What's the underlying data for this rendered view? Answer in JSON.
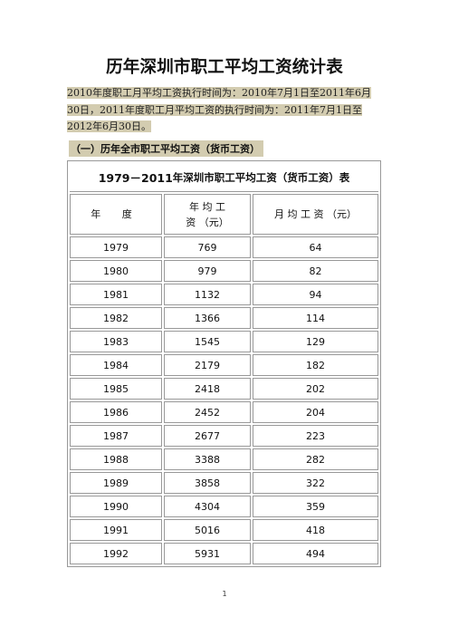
{
  "title": "历年深圳市职工平均工资统计表",
  "note": "2010年度职工月平均工资执行时间为：2010年7月1日至2011年6月30日，2011年度职工月平均工资的执行时间为：2011年7月1日至2012年6月30日。",
  "section_heading": "（一）历年全市职工平均工资（货币工资）",
  "table": {
    "caption_year": "1979－2011",
    "caption_text": "年深圳市职工平均工资（货币工资）表",
    "headers": {
      "year": "年 度",
      "annual_line1": "年 均 工",
      "annual_line2": "资 （元）",
      "monthly": "月 均 工 资 （元）"
    },
    "rows": [
      {
        "year": "1979",
        "annual": "769",
        "monthly": "64"
      },
      {
        "year": "1980",
        "annual": "979",
        "monthly": "82"
      },
      {
        "year": "1981",
        "annual": "1132",
        "monthly": "94"
      },
      {
        "year": "1982",
        "annual": "1366",
        "monthly": "114"
      },
      {
        "year": "1983",
        "annual": "1545",
        "monthly": "129"
      },
      {
        "year": "1984",
        "annual": "2179",
        "monthly": "182"
      },
      {
        "year": "1985",
        "annual": "2418",
        "monthly": "202"
      },
      {
        "year": "1986",
        "annual": "2452",
        "monthly": "204"
      },
      {
        "year": "1987",
        "annual": "2677",
        "monthly": "223"
      },
      {
        "year": "1988",
        "annual": "3388",
        "monthly": "282"
      },
      {
        "year": "1989",
        "annual": "3858",
        "monthly": "322"
      },
      {
        "year": "1990",
        "annual": "4304",
        "monthly": "359"
      },
      {
        "year": "1991",
        "annual": "5016",
        "monthly": "418"
      },
      {
        "year": "1992",
        "annual": "5931",
        "monthly": "494"
      }
    ]
  },
  "page_number": "1"
}
